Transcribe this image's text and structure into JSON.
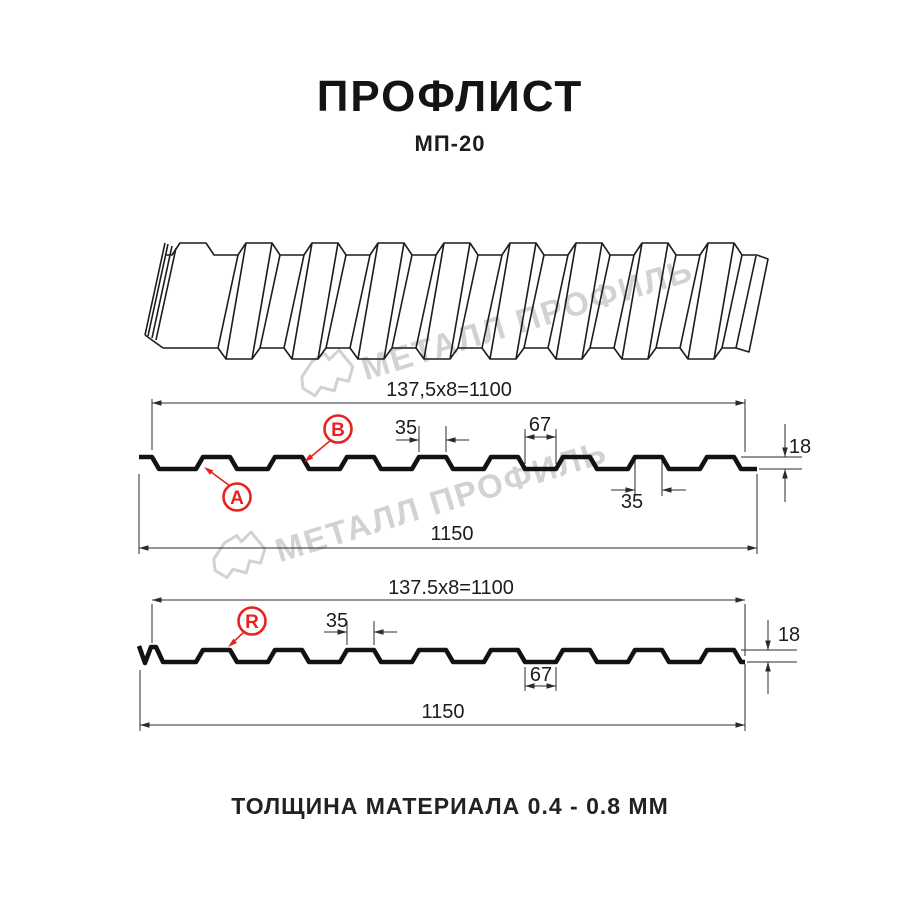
{
  "header": {
    "title": "ПРОФЛИСТ",
    "subtitle": "МП-20"
  },
  "footer": {
    "note": "ТОЛЩИНА МАТЕРИАЛА 0.4 - 0.8 ММ"
  },
  "watermark": {
    "text": "МЕТАЛЛ ПРОФИЛЬ",
    "color": "#d2d2d2"
  },
  "colors": {
    "line": "#121212",
    "accent_red": "#e62320",
    "dim_line": "#2b2b2b"
  },
  "section_a": {
    "dims": {
      "top_width": "137,5x8=1100",
      "rib_top": "35",
      "valley": "67",
      "rib_top_bottom": "35",
      "total_width": "1150",
      "height": "18"
    },
    "labels": {
      "a": "A",
      "b": "B"
    }
  },
  "section_r": {
    "dims": {
      "top_width": "137.5x8=1100",
      "rib_top": "35",
      "valley": "67",
      "total_width": "1150",
      "height": "18"
    },
    "labels": {
      "r": "R"
    }
  }
}
